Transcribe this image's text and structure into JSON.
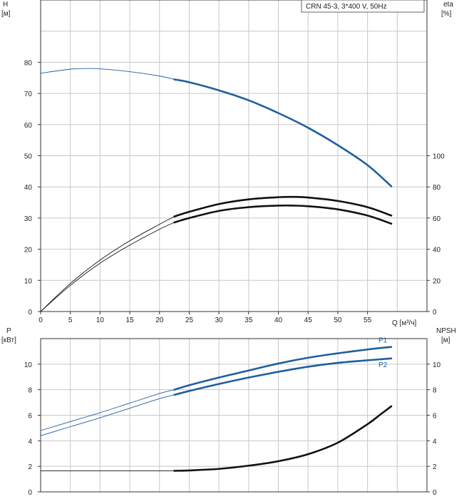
{
  "chart_data": [
    {
      "type": "line",
      "title_box": "CRN 45-3, 3*400 V, 50Hz",
      "ylabel_left": "H",
      "ylabel_left_unit": "[м]",
      "ylabel_right": "eta",
      "ylabel_right_unit": "[%]",
      "xlabel": "Q [м³/ч]",
      "xlim": [
        0,
        65
      ],
      "ylim_left": [
        0,
        100
      ],
      "ylim_right": [
        0,
        200
      ],
      "x_ticks": [
        "0",
        "5",
        "10",
        "15",
        "20",
        "25",
        "30",
        "35",
        "40",
        "45",
        "50",
        "55"
      ],
      "y_ticks_left": [
        "0",
        "10",
        "20",
        "30",
        "40",
        "50",
        "60",
        "70",
        "80"
      ],
      "y_ticks_right": [
        "0",
        "20",
        "40",
        "60",
        "80",
        "100"
      ],
      "series": [
        {
          "axis": "left",
          "color": "#1f5f9e",
          "thin_x": [
            0,
            5,
            7.5,
            10,
            15,
            20,
            22.5
          ],
          "thin_y": [
            76.5,
            77.8,
            78,
            77.9,
            77,
            75.6,
            74.5
          ],
          "thick_x": [
            22.5,
            25,
            30,
            35,
            40,
            45,
            50,
            55,
            59
          ],
          "thick_y": [
            74.5,
            73.6,
            71,
            67.8,
            63.7,
            59,
            53.4,
            47,
            40.2
          ]
        },
        {
          "axis": "left",
          "color": "#111111",
          "thin_x": [
            0,
            5,
            10,
            15,
            20,
            22.5
          ],
          "thin_y": [
            0,
            9,
            16.5,
            22.7,
            28,
            30.5
          ],
          "thick_x": [
            22.5,
            25,
            30,
            35,
            40,
            42.5,
            45,
            50,
            55,
            59
          ],
          "thick_y": [
            30.5,
            32,
            34.5,
            36,
            36.7,
            36.8,
            36.6,
            35.5,
            33.5,
            30.8
          ]
        },
        {
          "axis": "left",
          "color": "#111111",
          "thin_x": [
            0,
            5,
            10,
            15,
            20,
            22.5
          ],
          "thin_y": [
            0,
            8.4,
            15.5,
            21.3,
            26.4,
            28.6
          ],
          "thick_x": [
            22.5,
            25,
            30,
            35,
            40,
            42.5,
            45,
            50,
            55,
            59
          ],
          "thick_y": [
            28.6,
            30,
            32.3,
            33.5,
            34,
            34,
            33.8,
            32.8,
            30.8,
            28.2
          ]
        }
      ]
    },
    {
      "type": "line",
      "ylabel_left": "P",
      "ylabel_left_unit": "[кВт]",
      "ylabel_right": "NPSH",
      "ylabel_right_unit": "[м]",
      "xlim": [
        0,
        65
      ],
      "ylim": [
        0,
        12
      ],
      "y_ticks_left": [
        "0",
        "2",
        "4",
        "6",
        "8",
        "10"
      ],
      "y_ticks_right": [
        "0",
        "2",
        "4",
        "6",
        "8",
        "10"
      ],
      "series": [
        {
          "name": "P1",
          "color": "#1f5f9e",
          "thin_x": [
            0,
            5,
            10,
            15,
            20,
            22.5
          ],
          "thin_y": [
            4.8,
            5.5,
            6.2,
            6.95,
            7.7,
            8
          ],
          "thick_x": [
            22.5,
            25,
            30,
            35,
            40,
            45,
            50,
            55,
            59
          ],
          "thick_y": [
            8,
            8.35,
            8.95,
            9.5,
            10.05,
            10.5,
            10.85,
            11.15,
            11.35
          ]
        },
        {
          "name": "P2",
          "color": "#1f5f9e",
          "thin_x": [
            0,
            5,
            10,
            15,
            20,
            22.5
          ],
          "thin_y": [
            4.4,
            5.1,
            5.8,
            6.55,
            7.3,
            7.6
          ],
          "thick_x": [
            22.5,
            25,
            30,
            35,
            40,
            45,
            50,
            55,
            59
          ],
          "thick_y": [
            7.6,
            7.9,
            8.45,
            8.95,
            9.4,
            9.8,
            10.1,
            10.3,
            10.45
          ]
        },
        {
          "color": "#111111",
          "thin_x": [
            0,
            5,
            10,
            15,
            20,
            22.5
          ],
          "thin_y": [
            1.65,
            1.65,
            1.65,
            1.65,
            1.65,
            1.65
          ],
          "thick_x": [
            22.5,
            25,
            30,
            35,
            40,
            45,
            50,
            55,
            57,
            59
          ],
          "thick_y": [
            1.65,
            1.68,
            1.8,
            2.05,
            2.4,
            2.95,
            3.85,
            5.3,
            6.0,
            6.7
          ]
        }
      ]
    }
  ]
}
